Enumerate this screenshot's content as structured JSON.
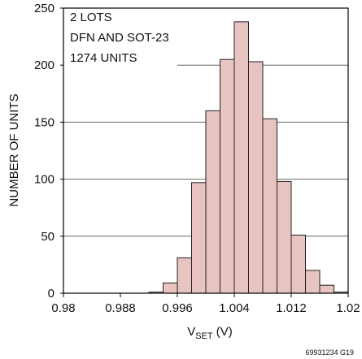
{
  "chart_data": {
    "type": "bar",
    "title": "",
    "annotation_lines": [
      "2 LOTS",
      "DFN AND SOT-23",
      "1274 UNITS"
    ],
    "xlabel": {
      "main": "V",
      "subscript": "SET",
      "suffix": " (V)"
    },
    "ylabel": "NUMBER OF UNITS",
    "xlim": [
      0.98,
      1.02
    ],
    "ylim": [
      0,
      250
    ],
    "x_ticks": [
      0.98,
      0.988,
      0.996,
      1.004,
      1.012,
      1.02
    ],
    "x_tick_labels": [
      "0.98",
      "0.988",
      "0.996",
      "1.004",
      "1.012",
      "1.02"
    ],
    "y_ticks": [
      0,
      50,
      100,
      150,
      200,
      250
    ],
    "y_tick_labels": [
      "0",
      "50",
      "100",
      "150",
      "200",
      "250"
    ],
    "grid": true,
    "bin_width": 0.002,
    "bins": [
      {
        "start": 0.992,
        "value": 1
      },
      {
        "start": 0.994,
        "value": 9
      },
      {
        "start": 0.996,
        "value": 31
      },
      {
        "start": 0.998,
        "value": 97
      },
      {
        "start": 1.0,
        "value": 160
      },
      {
        "start": 1.002,
        "value": 205
      },
      {
        "start": 1.004,
        "value": 238
      },
      {
        "start": 1.006,
        "value": 203
      },
      {
        "start": 1.008,
        "value": 153
      },
      {
        "start": 1.01,
        "value": 98
      },
      {
        "start": 1.012,
        "value": 51
      },
      {
        "start": 1.014,
        "value": 20
      },
      {
        "start": 1.016,
        "value": 7
      },
      {
        "start": 1.018,
        "value": 1
      }
    ],
    "colors": {
      "bar_fill": "#e8c4c0",
      "bar_stroke": "#222222",
      "grid": "#666666"
    }
  },
  "figure_id": "69931234 G19"
}
